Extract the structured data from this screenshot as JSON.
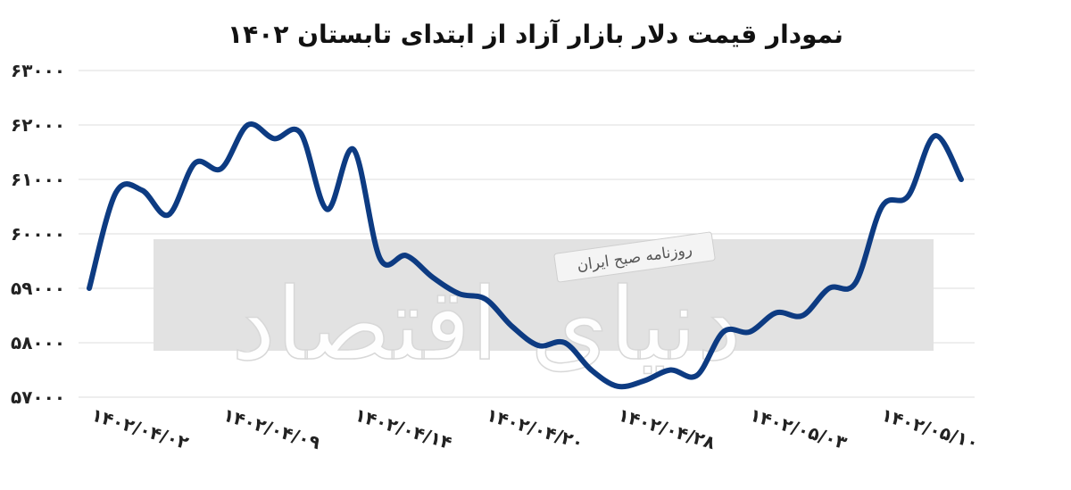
{
  "chart_data": {
    "type": "line",
    "title": "نمودار قیمت دلار بازار آزاد از ابتدای تابستان ۱۴۰۲",
    "xlabel": "",
    "ylabel": "",
    "ylim": [
      57000,
      63000
    ],
    "yticks": [
      63000,
      62000,
      61000,
      60000,
      59000,
      58000,
      57000
    ],
    "ytick_labels": [
      "۶۳۰۰۰",
      "۶۲۰۰۰",
      "۶۱۰۰۰",
      "۶۰۰۰۰",
      "۵۹۰۰۰",
      "۵۸۰۰۰",
      "۵۷۰۰۰"
    ],
    "xtick_labels": [
      "۱۴۰۲/۰۴/۰۲",
      "۱۴۰۲/۰۴/۰۹",
      "۱۴۰۲/۰۴/۱۴",
      "۱۴۰۲/۰۴/۲۰",
      "۱۴۰۲/۰۴/۲۸",
      "۱۴۰۲/۰۵/۰۳",
      "۱۴۰۲/۰۵/۱۰"
    ],
    "grid": true,
    "line_color": "#0d3b82",
    "series": [
      {
        "values": [
          59000,
          60750,
          60800,
          60350,
          61300,
          61200,
          62000,
          61750,
          61850,
          60450,
          61550,
          59550,
          59600,
          59200,
          58900,
          58800,
          58300,
          57950,
          58000,
          57500,
          57200,
          57300,
          57500,
          57400,
          58200,
          58200,
          58550,
          58500,
          59000,
          59100,
          60500,
          60700,
          61800,
          61000
        ]
      }
    ]
  },
  "watermark": {
    "main_text": "دنیای اقتصاد",
    "sub_text": "روزنامه صبح ایران",
    "band_color": "#e2e2e2"
  }
}
